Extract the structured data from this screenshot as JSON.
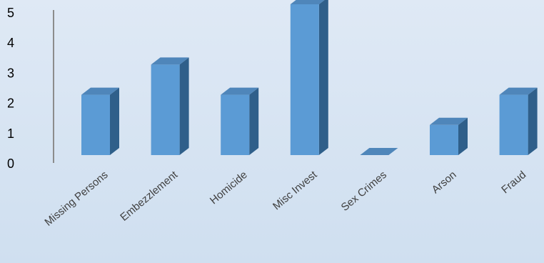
{
  "chart_data": {
    "type": "bar",
    "title": "",
    "xlabel": "",
    "ylabel": "",
    "categories": [
      "Missing Persons",
      "Embezzlement",
      "Homicide",
      "Misc Invest",
      "Sex Crimes",
      "Arson",
      "Fraud"
    ],
    "values": [
      2,
      3,
      2,
      5,
      0,
      1,
      2
    ],
    "ylim": [
      0,
      5
    ],
    "yticks": [
      "0",
      "1",
      "2",
      "3",
      "4",
      "5"
    ],
    "grid": false,
    "legend": "none",
    "colors": {
      "front": "#5b9bd5",
      "top": "#4f86ba",
      "side": "#2f5f8a",
      "axis": "#8c8c8c"
    }
  }
}
